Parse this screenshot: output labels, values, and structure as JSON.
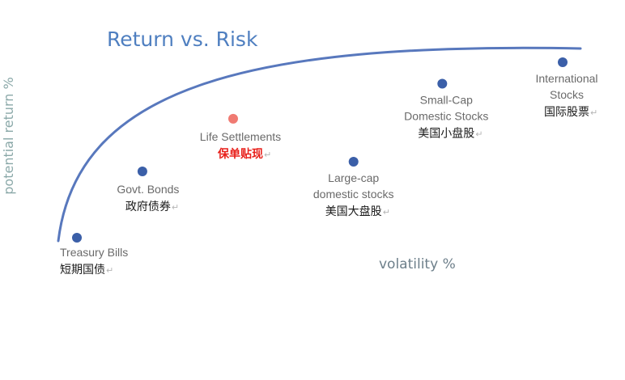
{
  "chart_data": {
    "type": "scatter",
    "title": "Return vs. Risk",
    "xlabel": "volatility %",
    "ylabel": "potential return %",
    "grid": false,
    "legend": "none",
    "points": [
      {
        "label_en": [
          "Treasury Bills"
        ],
        "label_cn": "短期国债",
        "x": 1.0,
        "y": 1.0,
        "color": "#3b5fa8",
        "highlight": false
      },
      {
        "label_en": [
          "Govt. Bonds"
        ],
        "label_cn": "政府债券",
        "x": 4.1,
        "y": 4.4,
        "color": "#3b5fa8",
        "highlight": false
      },
      {
        "label_en": [
          "Life Settlements"
        ],
        "label_cn": "保单贴现",
        "x": 8.4,
        "y": 7.1,
        "color": "#f07a72",
        "highlight": true
      },
      {
        "label_en": [
          "Large-cap",
          "domestic stocks"
        ],
        "label_cn": "美国大盘股",
        "x": 14.1,
        "y": 4.9,
        "color": "#3b5fa8",
        "highlight": false
      },
      {
        "label_en": [
          "Small-Cap",
          "Domestic Stocks"
        ],
        "label_cn": "美国小盘股",
        "x": 18.3,
        "y": 8.9,
        "color": "#3b5fa8",
        "highlight": false
      },
      {
        "label_en": [
          "International",
          "Stocks"
        ],
        "label_cn": "国际股票",
        "x": 24.0,
        "y": 10.0,
        "color": "#3b5fa8",
        "highlight": false
      }
    ],
    "curve": {
      "color": "#5878bd",
      "description_shape": "concave-frontier"
    }
  }
}
